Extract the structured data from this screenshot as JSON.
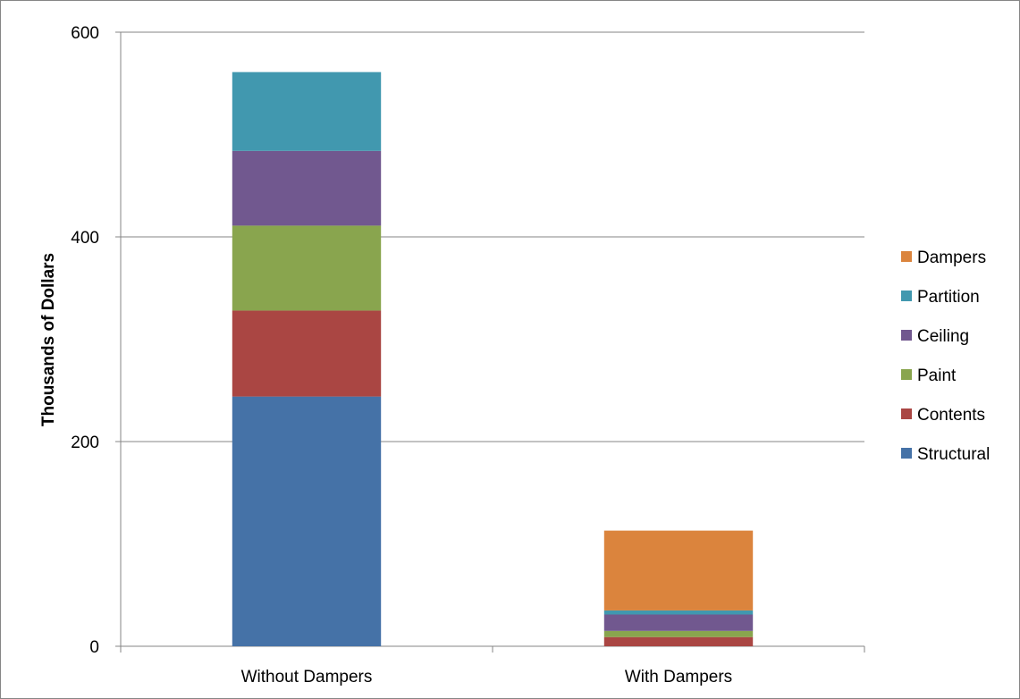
{
  "chart_data": {
    "type": "bar",
    "stacked": true,
    "categories": [
      "Without Dampers",
      "With Dampers"
    ],
    "series": [
      {
        "name": "Structural",
        "color": "#4572A7",
        "values": [
          244,
          0
        ]
      },
      {
        "name": "Contents",
        "color": "#AA4643",
        "values": [
          84,
          9
        ]
      },
      {
        "name": "Paint",
        "color": "#89A54E",
        "values": [
          83,
          6
        ]
      },
      {
        "name": "Ceiling",
        "color": "#71588F",
        "values": [
          73,
          16
        ]
      },
      {
        "name": "Partition",
        "color": "#4198AF",
        "values": [
          77,
          4
        ]
      },
      {
        "name": "Dampers",
        "color": "#DB843D",
        "values": [
          0,
          78
        ]
      }
    ],
    "title": "",
    "xlabel": "",
    "ylabel": "Thousands of Dollars",
    "ylim": [
      0,
      600
    ],
    "yticks": [
      "0",
      "200",
      "400",
      "600"
    ],
    "grid": true,
    "legend_position": "right"
  }
}
